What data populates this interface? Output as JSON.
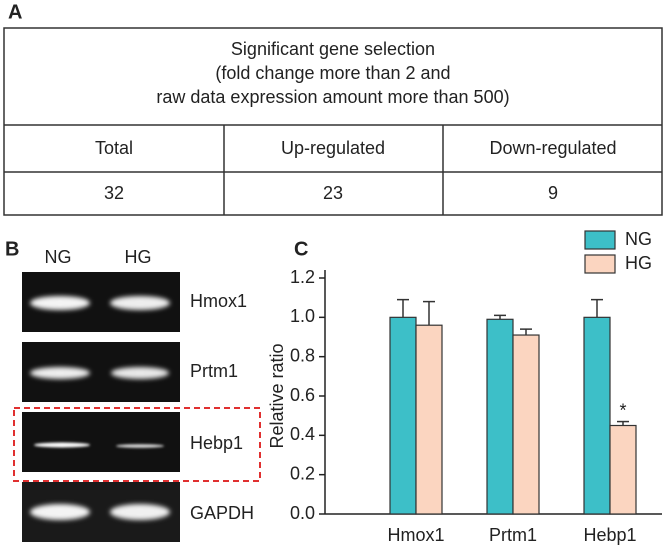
{
  "panel_a": {
    "label": "A",
    "table": {
      "title_lines": [
        "Significant gene selection",
        "(fold change more than 2 and",
        "raw data expression amount more than 500)"
      ],
      "header": [
        "Total",
        "Up-regulated",
        "Down-regulated"
      ],
      "rows": [
        [
          32,
          23,
          9
        ]
      ]
    }
  },
  "panel_b": {
    "label": "B",
    "lanes": [
      "NG",
      "HG"
    ],
    "genes": [
      "Hmox1",
      "Prtm1",
      "Hebp1",
      "GAPDH"
    ]
  },
  "chart_data": {
    "type": "bar",
    "panel_label": "C",
    "ylabel": "Relative ratio",
    "categories": [
      "Hmox1",
      "Prtm1",
      "Hebp1"
    ],
    "series": [
      {
        "name": "NG",
        "color": "#3dbfc8",
        "values": [
          1.0,
          0.99,
          1.0
        ],
        "errors": [
          0.09,
          0.02,
          0.09
        ]
      },
      {
        "name": "HG",
        "color": "#fbd5c0",
        "values": [
          0.96,
          0.91,
          0.45
        ],
        "errors": [
          0.12,
          0.03,
          0.02
        ]
      }
    ],
    "annotation": "*",
    "ylim": [
      0,
      1.2
    ],
    "yticks": [
      {
        "value": 0,
        "label": "0.0"
      },
      0.2,
      0.4,
      0.6,
      0.8,
      {
        "value": 1,
        "label": "1.0"
      },
      1.2
    ]
  }
}
